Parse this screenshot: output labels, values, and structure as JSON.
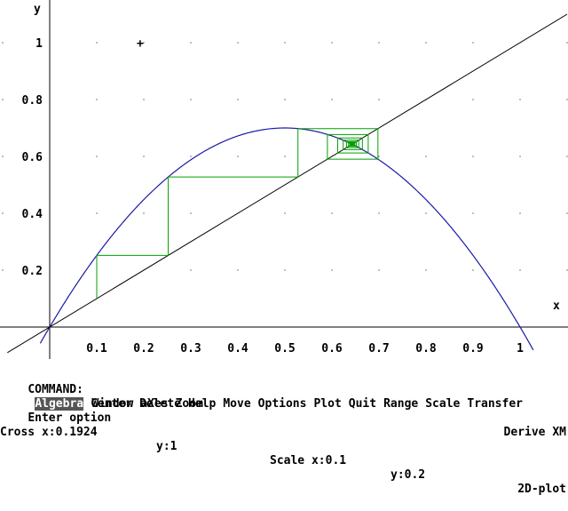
{
  "window": {
    "app_name": "Derive XM",
    "window_type": "2D-plot"
  },
  "command": {
    "prompt": "COMMAND:",
    "menu_items": [
      "Algebra",
      "Center",
      "Delete",
      "Help",
      "Move",
      "Options",
      "Plot",
      "Quit",
      "Range",
      "Scale",
      "Transfer",
      "Window",
      "aXes",
      "Zoom"
    ],
    "active_item": "Algebra"
  },
  "message": "Enter option",
  "status": {
    "cross_x": "Cross x:0.1924",
    "cross_y": "y:1",
    "scale_x": "Scale x:0.1",
    "scale_y": "y:0.2"
  },
  "cursor_glyph": "+",
  "colors": {
    "curve": "#1a1aa6",
    "cobweb": "#00a000",
    "axes": "#000000",
    "background": "#ffffff"
  },
  "chart_data": {
    "type": "line",
    "xlabel": "x",
    "ylabel": "y",
    "x_ticks": [
      "0.1",
      "0.2",
      "0.3",
      "0.4",
      "0.5",
      "0.6",
      "0.7",
      "0.8",
      "0.9",
      "1"
    ],
    "y_ticks": [
      "0.2",
      "0.4",
      "0.6",
      "0.8",
      "1"
    ],
    "xlim": [
      -0.09,
      1.1
    ],
    "ylim": [
      -0.09,
      1.12
    ],
    "series": [
      {
        "label_function": "y = 2.8·x·(1−x)",
        "r": 2.8,
        "kind": "logistic"
      },
      {
        "label_function": "y = x",
        "kind": "identity"
      }
    ],
    "cobweb": {
      "x0": 0.1,
      "iterations": 40
    },
    "cursor": {
      "x": 0.1924,
      "y": 1
    },
    "grid": "dots"
  }
}
